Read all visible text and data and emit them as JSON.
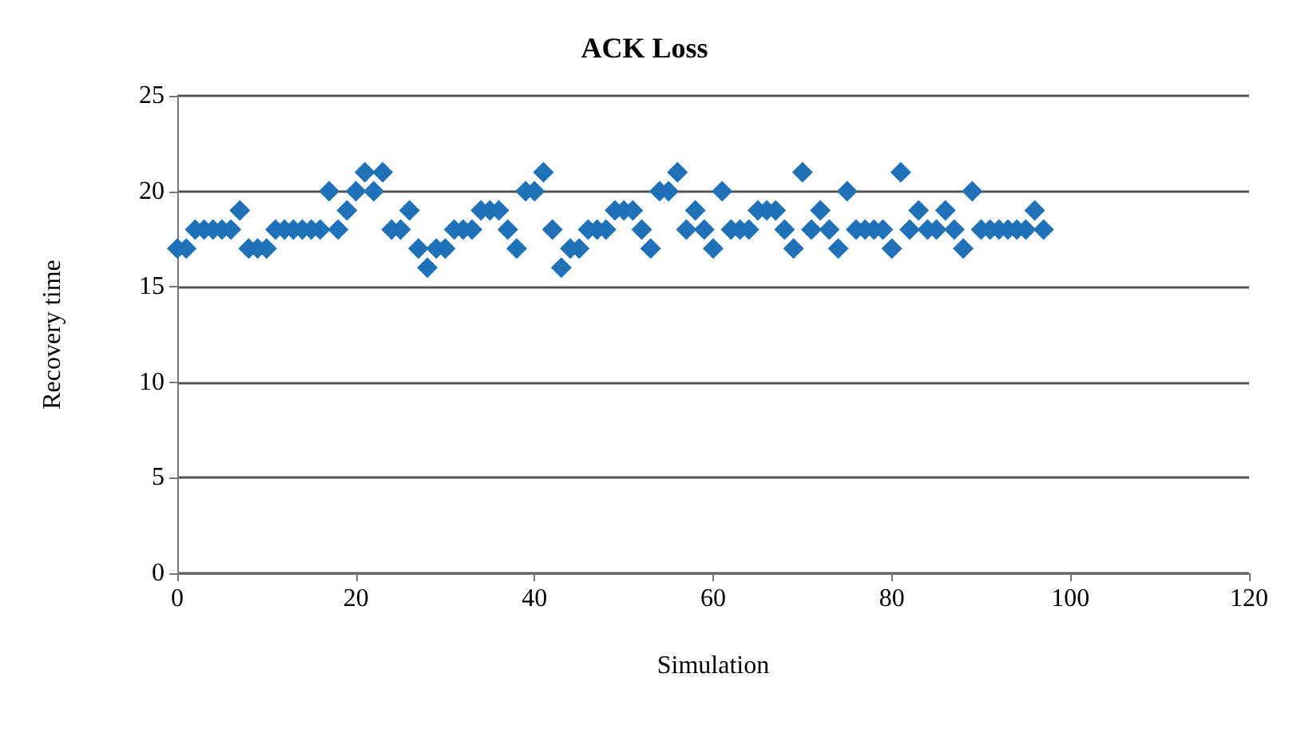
{
  "chart_data": {
    "type": "scatter",
    "title": "ACK Loss",
    "xlabel": "Simulation",
    "ylabel": "Recovery time",
    "x": [
      0,
      1,
      2,
      3,
      4,
      5,
      6,
      7,
      8,
      9,
      10,
      11,
      12,
      13,
      14,
      15,
      16,
      17,
      18,
      19,
      20,
      21,
      22,
      23,
      24,
      25,
      26,
      27,
      28,
      29,
      30,
      31,
      32,
      33,
      34,
      35,
      36,
      37,
      38,
      39,
      40,
      41,
      42,
      43,
      44,
      45,
      46,
      47,
      48,
      49,
      50,
      51,
      52,
      53,
      54,
      55,
      56,
      57,
      58,
      59,
      60,
      61,
      62,
      63,
      64,
      65,
      66,
      67,
      68,
      69,
      70,
      71,
      72,
      73,
      74,
      75,
      76,
      77,
      78,
      79,
      80,
      81,
      82,
      83,
      84,
      85,
      86,
      87,
      88,
      89,
      90,
      91,
      92,
      93,
      94,
      95,
      96,
      97
    ],
    "series": [
      {
        "color": "#1f72b8",
        "values": [
          17,
          17,
          18,
          18,
          18,
          18,
          18,
          19,
          17,
          17,
          17,
          18,
          18,
          18,
          18,
          18,
          18,
          20,
          18,
          19,
          20,
          21,
          20,
          21,
          18,
          18,
          19,
          17,
          16,
          17,
          17,
          18,
          18,
          18,
          19,
          19,
          19,
          18,
          17,
          20,
          20,
          21,
          18,
          16,
          17,
          17,
          18,
          18,
          18,
          19,
          19,
          19,
          18,
          17,
          20,
          20,
          21,
          18,
          19,
          18,
          17,
          20,
          18,
          18,
          18,
          19,
          19,
          19,
          18,
          17,
          21,
          18,
          19,
          18,
          17,
          20,
          18,
          18,
          18,
          18,
          17,
          21,
          18,
          19,
          18,
          18,
          19,
          18,
          17,
          20,
          18,
          18,
          18,
          18,
          18,
          18,
          19,
          18
        ]
      }
    ],
    "xlim": [
      0,
      120
    ],
    "xticks": [
      0,
      20,
      40,
      60,
      80,
      100,
      120
    ],
    "ylim": [
      0,
      25
    ],
    "yticks": [
      0,
      5,
      10,
      15,
      20,
      25
    ],
    "grid": "y",
    "marker": "diamond"
  }
}
